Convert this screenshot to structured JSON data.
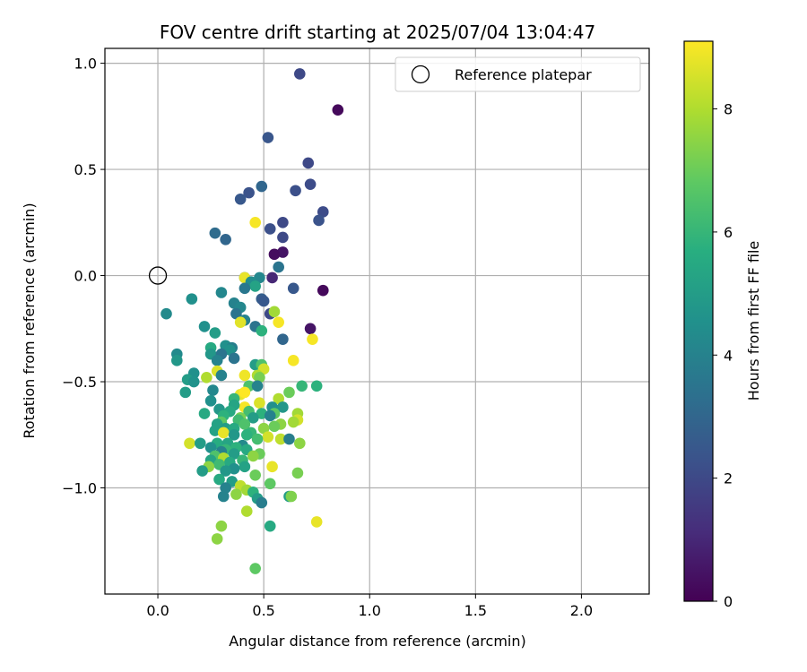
{
  "chart_data": {
    "type": "scatter",
    "title": "FOV centre drift starting at 2025/07/04 13:04:47",
    "xlabel": "Angular distance from reference (arcmin)",
    "ylabel": "Rotation from reference (arcmin)",
    "xlim": [
      -0.25,
      2.32
    ],
    "ylim": [
      -1.5,
      1.07
    ],
    "x_ticks": [
      0.0,
      0.5,
      1.0,
      1.5,
      2.0
    ],
    "x_tick_labels": [
      "0.0",
      "0.5",
      "1.0",
      "1.5",
      "2.0"
    ],
    "y_ticks": [
      1.0,
      0.5,
      0.0,
      -0.5,
      -1.0
    ],
    "y_tick_labels": [
      "1.0",
      "0.5",
      "0.0",
      "−0.5",
      "−1.0"
    ],
    "grid": true,
    "legend": {
      "placement": "upper-right",
      "entries": [
        "Reference platepar"
      ]
    },
    "reference_point": {
      "x": 0.0,
      "y": 0.0,
      "marker": "open-circle"
    },
    "colormap": "viridis",
    "colorbar": {
      "label": "Hours from first FF file",
      "min": 0,
      "max": 9.1,
      "ticks": [
        0,
        2,
        4,
        6,
        8
      ],
      "tick_labels": [
        "0",
        "2",
        "4",
        "6",
        "8"
      ]
    },
    "points": [
      [
        0.67,
        0.95,
        2.0
      ],
      [
        0.85,
        0.78,
        0.2
      ],
      [
        0.52,
        0.65,
        2.4
      ],
      [
        0.71,
        0.53,
        2.0
      ],
      [
        0.49,
        0.42,
        3.0
      ],
      [
        0.72,
        0.43,
        2.1
      ],
      [
        0.43,
        0.39,
        2.3
      ],
      [
        0.65,
        0.4,
        2.2
      ],
      [
        0.39,
        0.36,
        2.5
      ],
      [
        0.78,
        0.3,
        2.1
      ],
      [
        0.59,
        0.25,
        2.0
      ],
      [
        0.76,
        0.26,
        2.3
      ],
      [
        0.46,
        0.25,
        9.0
      ],
      [
        0.53,
        0.22,
        2.2
      ],
      [
        0.27,
        0.2,
        3.2
      ],
      [
        0.32,
        0.17,
        3.0
      ],
      [
        0.59,
        0.18,
        2.0
      ],
      [
        0.59,
        0.11,
        0.5
      ],
      [
        0.55,
        0.1,
        0.3
      ],
      [
        0.57,
        0.04,
        3.5
      ],
      [
        0.41,
        -0.01,
        3.2
      ],
      [
        0.41,
        -0.01,
        8.8
      ],
      [
        0.48,
        -0.01,
        4.2
      ],
      [
        0.54,
        -0.01,
        1.0
      ],
      [
        0.44,
        -0.03,
        4.4
      ],
      [
        0.46,
        -0.05,
        5.2
      ],
      [
        0.41,
        -0.06,
        3.6
      ],
      [
        0.64,
        -0.06,
        2.5
      ],
      [
        0.78,
        -0.07,
        0.2
      ],
      [
        0.3,
        -0.08,
        4.2
      ],
      [
        0.16,
        -0.11,
        4.5
      ],
      [
        0.49,
        -0.11,
        2.7
      ],
      [
        0.5,
        -0.12,
        2.5
      ],
      [
        0.36,
        -0.13,
        4.0
      ],
      [
        0.39,
        -0.15,
        4.2
      ],
      [
        0.04,
        -0.18,
        4.3
      ],
      [
        0.37,
        -0.18,
        3.5
      ],
      [
        0.53,
        -0.18,
        2.0
      ],
      [
        0.55,
        -0.17,
        7.8
      ],
      [
        0.57,
        -0.22,
        9.0
      ],
      [
        0.41,
        -0.21,
        4.0
      ],
      [
        0.39,
        -0.22,
        8.7
      ],
      [
        0.46,
        -0.24,
        3.5
      ],
      [
        0.22,
        -0.24,
        4.5
      ],
      [
        0.49,
        -0.26,
        5.8
      ],
      [
        0.72,
        -0.25,
        0.5
      ],
      [
        0.27,
        -0.27,
        5.0
      ],
      [
        0.59,
        -0.3,
        3.0
      ],
      [
        0.73,
        -0.3,
        9.0
      ],
      [
        0.32,
        -0.33,
        4.5
      ],
      [
        0.35,
        -0.34,
        3.9
      ],
      [
        0.34,
        -0.35,
        4.6
      ],
      [
        0.25,
        -0.34,
        5.5
      ],
      [
        0.25,
        -0.37,
        4.8
      ],
      [
        0.3,
        -0.37,
        3.5
      ],
      [
        0.09,
        -0.37,
        4.3
      ],
      [
        0.36,
        -0.39,
        3.5
      ],
      [
        0.09,
        -0.4,
        4.8
      ],
      [
        0.28,
        -0.4,
        4.0
      ],
      [
        0.64,
        -0.4,
        9.0
      ],
      [
        0.46,
        -0.42,
        5.0
      ],
      [
        0.49,
        -0.42,
        6.5
      ],
      [
        0.5,
        -0.44,
        8.5
      ],
      [
        0.17,
        -0.46,
        4.5
      ],
      [
        0.28,
        -0.45,
        8.6
      ],
      [
        0.3,
        -0.47,
        4.0
      ],
      [
        0.41,
        -0.47,
        8.9
      ],
      [
        0.47,
        -0.47,
        8.0
      ],
      [
        0.48,
        -0.48,
        7.2
      ],
      [
        0.14,
        -0.49,
        5.0
      ],
      [
        0.23,
        -0.48,
        8.0
      ],
      [
        0.17,
        -0.5,
        4.6
      ],
      [
        0.43,
        -0.52,
        6.5
      ],
      [
        0.47,
        -0.52,
        4.0
      ],
      [
        0.68,
        -0.52,
        6.0
      ],
      [
        0.75,
        -0.52,
        5.8
      ],
      [
        0.26,
        -0.54,
        4.2
      ],
      [
        0.13,
        -0.55,
        5.0
      ],
      [
        0.62,
        -0.55,
        7.0
      ],
      [
        0.39,
        -0.56,
        8.8
      ],
      [
        0.41,
        -0.55,
        9.1
      ],
      [
        0.36,
        -0.58,
        6.0
      ],
      [
        0.25,
        -0.59,
        4.5
      ],
      [
        0.57,
        -0.58,
        8.0
      ],
      [
        0.48,
        -0.6,
        8.6
      ],
      [
        0.41,
        -0.62,
        9.0
      ],
      [
        0.36,
        -0.61,
        5.3
      ],
      [
        0.54,
        -0.62,
        4.5
      ],
      [
        0.59,
        -0.62,
        4.8
      ],
      [
        0.29,
        -0.63,
        4.8
      ],
      [
        0.43,
        -0.64,
        6.3
      ],
      [
        0.34,
        -0.64,
        5.5
      ],
      [
        0.49,
        -0.65,
        5.8
      ],
      [
        0.55,
        -0.65,
        6.8
      ],
      [
        0.53,
        -0.66,
        4.0
      ],
      [
        0.66,
        -0.65,
        7.8
      ],
      [
        0.22,
        -0.65,
        5.5
      ],
      [
        0.31,
        -0.66,
        5.8
      ],
      [
        0.39,
        -0.67,
        7.2
      ],
      [
        0.45,
        -0.67,
        5.0
      ],
      [
        0.38,
        -0.68,
        6.2
      ],
      [
        0.3,
        -0.69,
        6.8
      ],
      [
        0.41,
        -0.7,
        6.5
      ],
      [
        0.58,
        -0.7,
        7.5
      ],
      [
        0.66,
        -0.68,
        8.5
      ],
      [
        0.28,
        -0.7,
        5.2
      ],
      [
        0.55,
        -0.71,
        7.0
      ],
      [
        0.64,
        -0.69,
        7.8
      ],
      [
        0.32,
        -0.72,
        5.0
      ],
      [
        0.36,
        -0.72,
        5.5
      ],
      [
        0.5,
        -0.72,
        7.5
      ],
      [
        0.27,
        -0.73,
        5.2
      ],
      [
        0.44,
        -0.74,
        6.0
      ],
      [
        0.31,
        -0.74,
        8.8
      ],
      [
        0.36,
        -0.75,
        4.8
      ],
      [
        0.42,
        -0.75,
        5.8
      ],
      [
        0.52,
        -0.76,
        8.5
      ],
      [
        0.47,
        -0.77,
        6.3
      ],
      [
        0.58,
        -0.77,
        8.2
      ],
      [
        0.62,
        -0.77,
        3.8
      ],
      [
        0.15,
        -0.79,
        8.5
      ],
      [
        0.2,
        -0.79,
        5.0
      ],
      [
        0.28,
        -0.79,
        5.6
      ],
      [
        0.33,
        -0.79,
        5.3
      ],
      [
        0.4,
        -0.8,
        4.3
      ],
      [
        0.37,
        -0.81,
        5.8
      ],
      [
        0.25,
        -0.81,
        4.5
      ],
      [
        0.67,
        -0.79,
        7.5
      ],
      [
        0.32,
        -0.82,
        6.0
      ],
      [
        0.42,
        -0.82,
        5.5
      ],
      [
        0.3,
        -0.83,
        4.0
      ],
      [
        0.48,
        -0.84,
        7.0
      ],
      [
        0.36,
        -0.84,
        5.0
      ],
      [
        0.45,
        -0.85,
        7.5
      ],
      [
        0.27,
        -0.85,
        6.5
      ],
      [
        0.31,
        -0.86,
        8.0
      ],
      [
        0.25,
        -0.87,
        5.3
      ],
      [
        0.4,
        -0.87,
        6.0
      ],
      [
        0.34,
        -0.88,
        5.5
      ],
      [
        0.29,
        -0.89,
        6.2
      ],
      [
        0.24,
        -0.9,
        7.5
      ],
      [
        0.41,
        -0.9,
        5.2
      ],
      [
        0.54,
        -0.9,
        8.8
      ],
      [
        0.36,
        -0.91,
        4.5
      ],
      [
        0.32,
        -0.92,
        4.8
      ],
      [
        0.21,
        -0.92,
        5.0
      ],
      [
        0.46,
        -0.94,
        7.0
      ],
      [
        0.66,
        -0.93,
        7.2
      ],
      [
        0.29,
        -0.96,
        5.5
      ],
      [
        0.35,
        -0.97,
        5.0
      ],
      [
        0.53,
        -0.98,
        6.8
      ],
      [
        0.39,
        -0.99,
        8.2
      ],
      [
        0.32,
        -1.0,
        4.0
      ],
      [
        0.42,
        -1.01,
        7.8
      ],
      [
        0.45,
        -1.02,
        5.8
      ],
      [
        0.37,
        -1.03,
        7.5
      ],
      [
        0.31,
        -1.04,
        4.0
      ],
      [
        0.62,
        -1.04,
        5.0
      ],
      [
        0.47,
        -1.05,
        5.0
      ],
      [
        0.63,
        -1.04,
        7.3
      ],
      [
        0.49,
        -1.07,
        3.8
      ],
      [
        0.42,
        -1.11,
        8.0
      ],
      [
        0.75,
        -1.16,
        8.8
      ],
      [
        0.3,
        -1.18,
        7.5
      ],
      [
        0.53,
        -1.18,
        5.5
      ],
      [
        0.28,
        -1.24,
        7.5
      ],
      [
        0.46,
        -1.38,
        6.8
      ]
    ]
  }
}
